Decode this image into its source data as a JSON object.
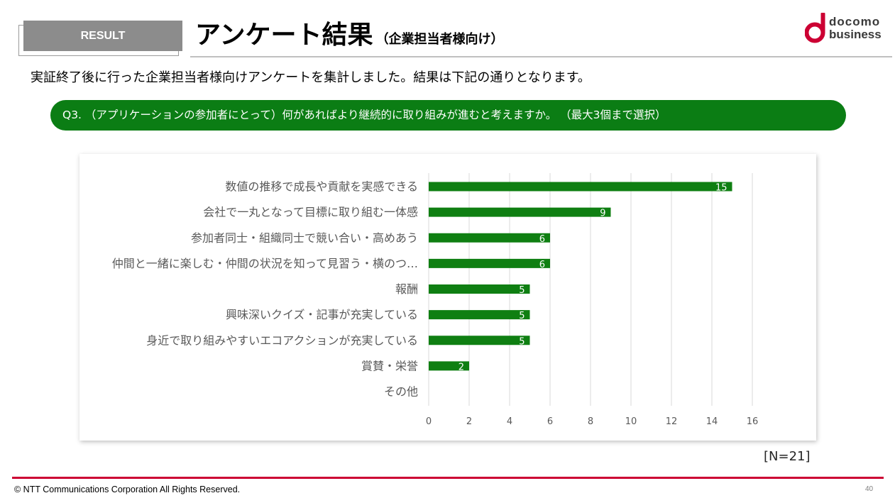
{
  "header": {
    "badge_label": "RESULT",
    "title": "アンケート結果",
    "title_suffix": "（企業担当者様向け）"
  },
  "logo": {
    "mark_icon": "docomo-d-mark-icon",
    "line1": "docomo",
    "line2": "business"
  },
  "intro_text": "実証終了後に行った企業担当者様向けアンケートを集計しました。結果は下記の通りとなります。",
  "question": "Q3. （アプリケーションの参加者にとって）何があればより継続的に取り組みが進むと考えますか。 （最大3個まで選択）",
  "sample_size_label": "[N=21]",
  "footer": {
    "copyright": "© NTT Communications Corporation All Rights Reserved.",
    "page_number": "40"
  },
  "colors": {
    "brand_red": "#cc0033",
    "question_green": "#0b7d14",
    "badge_gray": "#8c8c8c"
  },
  "chart_data": {
    "type": "bar",
    "orientation": "horizontal",
    "categories": [
      "数値の推移で成長や貢献を実感できる",
      "会社で一丸となって目標に取り組む一体感",
      "参加者同士・組織同士で競い合い・高めあう",
      "仲間と一緒に楽しむ・仲間の状況を知って見習う・横のつ…",
      "報酬",
      "興味深いクイズ・記事が充実している",
      "身近で取り組みやすいエコアクションが充実している",
      "賞賛・栄誉",
      "その他"
    ],
    "values": [
      15,
      9,
      6,
      6,
      5,
      5,
      5,
      2,
      0
    ],
    "xlim": [
      0,
      16
    ],
    "xticks": [
      0,
      2,
      4,
      6,
      8,
      10,
      12,
      14,
      16
    ],
    "grid": true,
    "data_labels": true,
    "bar_color": "#0f7f12"
  }
}
